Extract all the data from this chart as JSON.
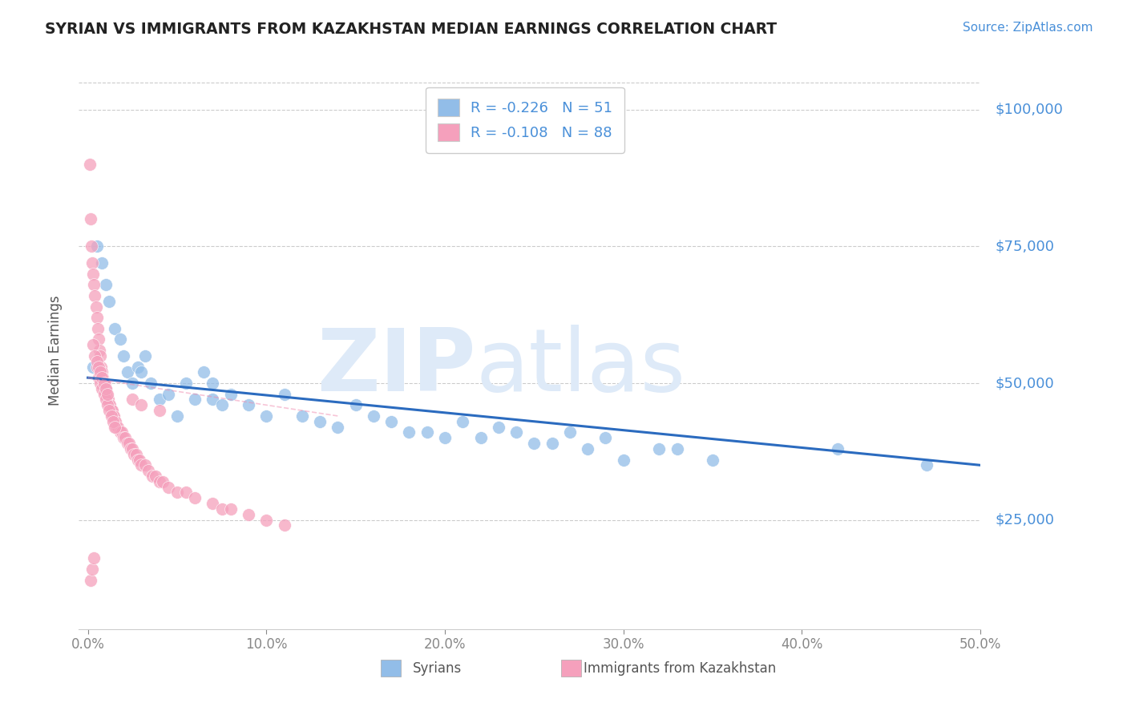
{
  "title": "SYRIAN VS IMMIGRANTS FROM KAZAKHSTAN MEDIAN EARNINGS CORRELATION CHART",
  "source": "Source: ZipAtlas.com",
  "xlabel_ticks": [
    "0.0%",
    "10.0%",
    "20.0%",
    "30.0%",
    "40.0%",
    "50.0%"
  ],
  "xlabel_vals": [
    0.0,
    10.0,
    20.0,
    30.0,
    40.0,
    50.0
  ],
  "ylabel_ticks": [
    25000,
    50000,
    75000,
    100000
  ],
  "ylabel_labels": [
    "$25,000",
    "$50,000",
    "$75,000",
    "$100,000"
  ],
  "xlim": [
    -0.5,
    50.0
  ],
  "ylim": [
    5000,
    107000
  ],
  "legend_label1": "Syrians",
  "legend_label2": "Immigrants from Kazakhstan",
  "legend_r1": "R = -0.226",
  "legend_n1": "N = 51",
  "legend_r2": "R = -0.108",
  "legend_n2": "N = 88",
  "watermark_zip": "ZIP",
  "watermark_atlas": "atlas",
  "watermark_color": "#deeaf8",
  "title_color": "#222222",
  "axis_label_color": "#4a90d9",
  "blue_scatter_color": "#92bde8",
  "pink_scatter_color": "#f5a0bc",
  "blue_line_color": "#2b6bbf",
  "pink_line_color": "#f08cb0",
  "syrians_x": [
    0.3,
    0.5,
    0.8,
    1.0,
    1.2,
    1.5,
    1.8,
    2.0,
    2.2,
    2.5,
    2.8,
    3.0,
    3.2,
    3.5,
    4.0,
    4.5,
    5.0,
    5.5,
    6.0,
    6.5,
    7.0,
    7.0,
    7.5,
    8.0,
    9.0,
    10.0,
    11.0,
    12.0,
    13.0,
    14.0,
    15.0,
    16.0,
    17.0,
    18.0,
    19.0,
    20.0,
    21.0,
    22.0,
    23.0,
    24.0,
    25.0,
    26.0,
    27.0,
    28.0,
    29.0,
    30.0,
    32.0,
    33.0,
    35.0,
    42.0,
    47.0
  ],
  "syrians_y": [
    53000,
    75000,
    72000,
    68000,
    65000,
    60000,
    58000,
    55000,
    52000,
    50000,
    53000,
    52000,
    55000,
    50000,
    47000,
    48000,
    44000,
    50000,
    47000,
    52000,
    47000,
    50000,
    46000,
    48000,
    46000,
    44000,
    48000,
    44000,
    43000,
    42000,
    46000,
    44000,
    43000,
    41000,
    41000,
    40000,
    43000,
    40000,
    42000,
    41000,
    39000,
    39000,
    41000,
    38000,
    40000,
    36000,
    38000,
    38000,
    36000,
    38000,
    35000
  ],
  "kazakhstan_x": [
    0.1,
    0.15,
    0.2,
    0.25,
    0.3,
    0.35,
    0.4,
    0.45,
    0.5,
    0.55,
    0.6,
    0.65,
    0.7,
    0.75,
    0.8,
    0.85,
    0.9,
    0.95,
    1.0,
    1.05,
    1.1,
    1.15,
    1.2,
    1.25,
    1.3,
    1.35,
    1.4,
    1.45,
    1.5,
    1.55,
    1.6,
    1.7,
    1.8,
    1.9,
    2.0,
    2.1,
    2.2,
    2.3,
    2.4,
    2.5,
    2.6,
    2.7,
    2.8,
    2.9,
    3.0,
    3.2,
    3.4,
    3.6,
    3.8,
    4.0,
    4.2,
    4.5,
    5.0,
    5.5,
    6.0,
    7.0,
    7.5,
    8.0,
    9.0,
    10.0,
    11.0,
    1.0,
    0.5,
    0.6,
    0.7,
    0.8,
    0.9,
    1.0,
    1.1,
    1.2,
    1.3,
    1.4,
    1.5,
    0.3,
    0.4,
    0.5,
    0.6,
    0.7,
    0.8,
    0.9,
    1.0,
    1.1,
    0.15,
    0.25,
    0.35,
    2.5,
    3.0,
    4.0
  ],
  "kazakhstan_y": [
    90000,
    80000,
    75000,
    72000,
    70000,
    68000,
    66000,
    64000,
    62000,
    60000,
    58000,
    56000,
    55000,
    53000,
    52000,
    51000,
    50000,
    50000,
    49000,
    48000,
    47000,
    47000,
    46000,
    46000,
    45000,
    45000,
    44000,
    44000,
    43000,
    43000,
    42000,
    42000,
    41000,
    41000,
    40000,
    40000,
    39000,
    39000,
    38000,
    38000,
    37000,
    37000,
    36000,
    36000,
    35000,
    35000,
    34000,
    33000,
    33000,
    32000,
    32000,
    31000,
    30000,
    30000,
    29000,
    28000,
    27000,
    27000,
    26000,
    25000,
    24000,
    48000,
    53000,
    51000,
    50000,
    49000,
    48000,
    47000,
    46000,
    45000,
    44000,
    43000,
    42000,
    57000,
    55000,
    54000,
    53000,
    52000,
    51000,
    50000,
    49000,
    48000,
    14000,
    16000,
    18000,
    47000,
    46000,
    45000
  ],
  "blue_trend_x": [
    0.0,
    50.0
  ],
  "blue_trend_y": [
    51000,
    35000
  ],
  "pink_trend_x": [
    0.0,
    14.0
  ],
  "pink_trend_y": [
    51000,
    44000
  ]
}
